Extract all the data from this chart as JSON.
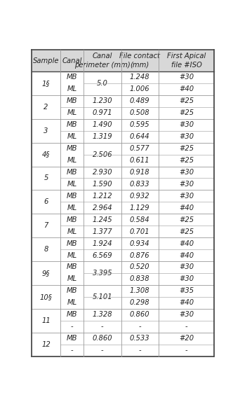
{
  "col_headers": [
    "Sample",
    "Canal",
    "Canal\nperimeter (mm)",
    "File contact\n(mm)",
    "First Apical\nfile #ISO"
  ],
  "groups": [
    {
      "sample": "1§",
      "rows": [
        {
          "canal": "MB",
          "perimeter": "",
          "perimeter_shared": "5.0",
          "file_contact": "1.248",
          "first_apical": "#30"
        },
        {
          "canal": "ML",
          "perimeter": "",
          "perimeter_shared": "",
          "file_contact": "1.006",
          "first_apical": "#40"
        }
      ]
    },
    {
      "sample": "2",
      "rows": [
        {
          "canal": "MB",
          "perimeter": "1.230",
          "perimeter_shared": "",
          "file_contact": "0.489",
          "first_apical": "#25"
        },
        {
          "canal": "ML",
          "perimeter": "0.971",
          "perimeter_shared": "",
          "file_contact": "0.508",
          "first_apical": "#25"
        }
      ]
    },
    {
      "sample": "3",
      "rows": [
        {
          "canal": "MB",
          "perimeter": "1.490",
          "perimeter_shared": "",
          "file_contact": "0.595",
          "first_apical": "#30"
        },
        {
          "canal": "ML",
          "perimeter": "1.319",
          "perimeter_shared": "",
          "file_contact": "0.644",
          "first_apical": "#30"
        }
      ]
    },
    {
      "sample": "4§",
      "rows": [
        {
          "canal": "MB",
          "perimeter": "",
          "perimeter_shared": "2.506",
          "file_contact": "0.577",
          "first_apical": "#25"
        },
        {
          "canal": "ML",
          "perimeter": "",
          "perimeter_shared": "",
          "file_contact": "0.611",
          "first_apical": "#25"
        }
      ]
    },
    {
      "sample": "5",
      "rows": [
        {
          "canal": "MB",
          "perimeter": "2.930",
          "perimeter_shared": "",
          "file_contact": "0.918",
          "first_apical": "#30"
        },
        {
          "canal": "ML",
          "perimeter": "1.590",
          "perimeter_shared": "",
          "file_contact": "0.833",
          "first_apical": "#30"
        }
      ]
    },
    {
      "sample": "6",
      "rows": [
        {
          "canal": "MB",
          "perimeter": "1.212",
          "perimeter_shared": "",
          "file_contact": "0.932",
          "first_apical": "#30"
        },
        {
          "canal": "ML",
          "perimeter": "2.964",
          "perimeter_shared": "",
          "file_contact": "1.129",
          "first_apical": "#40"
        }
      ]
    },
    {
      "sample": "7",
      "rows": [
        {
          "canal": "MB",
          "perimeter": "1.245",
          "perimeter_shared": "",
          "file_contact": "0.584",
          "first_apical": "#25"
        },
        {
          "canal": "ML",
          "perimeter": "1.377",
          "perimeter_shared": "",
          "file_contact": "0.701",
          "first_apical": "#25"
        }
      ]
    },
    {
      "sample": "8",
      "rows": [
        {
          "canal": "MB",
          "perimeter": "1.924",
          "perimeter_shared": "",
          "file_contact": "0.934",
          "first_apical": "#40"
        },
        {
          "canal": "ML",
          "perimeter": "6.569",
          "perimeter_shared": "",
          "file_contact": "0.876",
          "first_apical": "#40"
        }
      ]
    },
    {
      "sample": "9§",
      "rows": [
        {
          "canal": "MB",
          "perimeter": "",
          "perimeter_shared": "3.395",
          "file_contact": "0.520",
          "first_apical": "#30"
        },
        {
          "canal": "ML",
          "perimeter": "",
          "perimeter_shared": "",
          "file_contact": "0.838",
          "first_apical": "#30"
        }
      ]
    },
    {
      "sample": "10§",
      "rows": [
        {
          "canal": "MB",
          "perimeter": "",
          "perimeter_shared": "5.101",
          "file_contact": "1.308",
          "first_apical": "#35"
        },
        {
          "canal": "ML",
          "perimeter": "",
          "perimeter_shared": "",
          "file_contact": "0.298",
          "first_apical": "#40"
        }
      ]
    },
    {
      "sample": "11",
      "rows": [
        {
          "canal": "MB",
          "perimeter": "1.328",
          "perimeter_shared": "",
          "file_contact": "0.860",
          "first_apical": "#30"
        },
        {
          "canal": "-",
          "perimeter": "-",
          "perimeter_shared": "",
          "file_contact": "-",
          "first_apical": "-"
        }
      ]
    },
    {
      "sample": "12",
      "rows": [
        {
          "canal": "MB",
          "perimeter": "0.860",
          "perimeter_shared": "",
          "file_contact": "0.533",
          "first_apical": "#20"
        },
        {
          "canal": "-",
          "perimeter": "-",
          "perimeter_shared": "",
          "file_contact": "-",
          "first_apical": "-"
        }
      ]
    }
  ],
  "header_bg": "#d8d8d8",
  "line_color": "#999999",
  "text_color": "#222222",
  "font_size": 7.2
}
